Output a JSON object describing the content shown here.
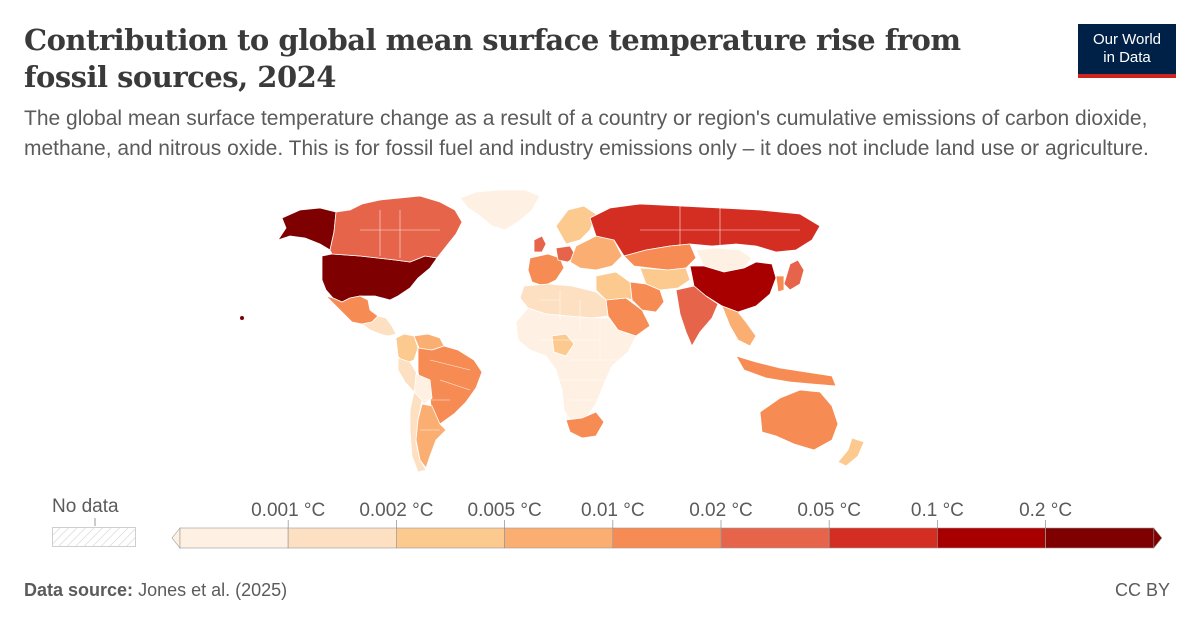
{
  "header": {
    "title": "Contribution to global mean surface temperature rise from fossil sources, 2024",
    "subtitle": "The global mean surface temperature change as a result of a country or region's cumulative emissions of carbon dioxide, methane, and nitrous oxide. This is for fossil fuel and industry emissions only – it does not include land use or agriculture."
  },
  "logo": {
    "line1": "Our World",
    "line2": "in Data"
  },
  "legend": {
    "no_data_label": "No data",
    "bins": [
      {
        "label": "0.001 °C",
        "color": "#fef1e3"
      },
      {
        "label": "0.002 °C",
        "color": "#fde0c1"
      },
      {
        "label": "0.005 °C",
        "color": "#fcc98f"
      },
      {
        "label": "0.01 °C",
        "color": "#fbae72"
      },
      {
        "label": "0.02 °C",
        "color": "#f78b54"
      },
      {
        "label": "0.05 °C",
        "color": "#e6644a"
      },
      {
        "label": "0.1 °C",
        "color": "#d42e22"
      },
      {
        "label": "0.2 °C",
        "color": "#a80000"
      },
      {
        "label": "",
        "color": "#7e0000"
      }
    ]
  },
  "map": {
    "regions": [
      {
        "name": "United States",
        "color": "#7e0000"
      },
      {
        "name": "Alaska",
        "color": "#7e0000"
      },
      {
        "name": "Canada",
        "color": "#e6644a"
      },
      {
        "name": "Greenland",
        "color": "#fef1e3"
      },
      {
        "name": "Mexico",
        "color": "#f78b54"
      },
      {
        "name": "Central America",
        "color": "#fde0c1"
      },
      {
        "name": "Colombia",
        "color": "#fcc98f"
      },
      {
        "name": "Venezuela",
        "color": "#fbae72"
      },
      {
        "name": "Peru",
        "color": "#fde0c1"
      },
      {
        "name": "Brazil",
        "color": "#f78b54"
      },
      {
        "name": "Bolivia",
        "color": "#fef1e3"
      },
      {
        "name": "Chile",
        "color": "#fde0c1"
      },
      {
        "name": "Argentina",
        "color": "#fbae72"
      },
      {
        "name": "Western Europe",
        "color": "#f78b54"
      },
      {
        "name": "United Kingdom",
        "color": "#e6644a"
      },
      {
        "name": "Germany",
        "color": "#e6644a"
      },
      {
        "name": "Scandinavia",
        "color": "#fcc98f"
      },
      {
        "name": "Eastern Europe",
        "color": "#fbae72"
      },
      {
        "name": "Russia",
        "color": "#d42e22"
      },
      {
        "name": "Kazakhstan",
        "color": "#f78b54"
      },
      {
        "name": "Central Asia",
        "color": "#fcc98f"
      },
      {
        "name": "Mongolia",
        "color": "#fef1e3"
      },
      {
        "name": "China",
        "color": "#a80000"
      },
      {
        "name": "Japan",
        "color": "#e6644a"
      },
      {
        "name": "South Korea",
        "color": "#f78b54"
      },
      {
        "name": "India",
        "color": "#e6644a"
      },
      {
        "name": "Iran",
        "color": "#f78b54"
      },
      {
        "name": "Saudi Arabia",
        "color": "#f78b54"
      },
      {
        "name": "Middle East",
        "color": "#fcc98f"
      },
      {
        "name": "North Africa",
        "color": "#fde0c1"
      },
      {
        "name": "Sub-Saharan Africa",
        "color": "#fef1e3"
      },
      {
        "name": "Nigeria",
        "color": "#fcc98f"
      },
      {
        "name": "South Africa",
        "color": "#f78b54"
      },
      {
        "name": "Southeast Asia",
        "color": "#fbae72"
      },
      {
        "name": "Indonesia",
        "color": "#f78b54"
      },
      {
        "name": "Australia",
        "color": "#f78b54"
      },
      {
        "name": "New Zealand",
        "color": "#fcc98f"
      }
    ]
  },
  "footer": {
    "source_label": "Data source:",
    "source_value": "Jones et al. (2025)",
    "license": "CC BY"
  }
}
